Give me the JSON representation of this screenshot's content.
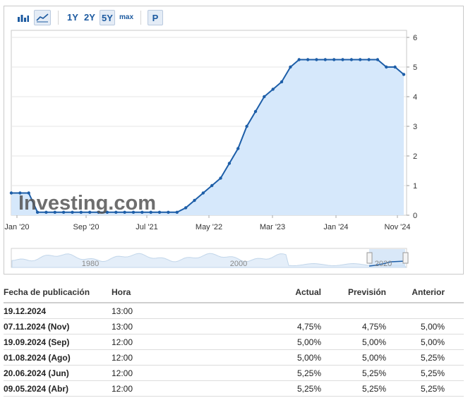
{
  "toolbar": {
    "ranges": [
      "1Y",
      "2Y",
      "5Y",
      "max"
    ],
    "selected_range": "5Y",
    "p_label": "P",
    "icons": [
      "bar-chart-icon",
      "area-chart-icon"
    ]
  },
  "chart_data": {
    "type": "area",
    "x_tick_labels": [
      "Jan '20",
      "Sep '20",
      "Jul '21",
      "May '22",
      "Mar '23",
      "Jan '24",
      "Nov '24"
    ],
    "y_ticks": [
      0,
      1,
      2,
      3,
      4,
      5,
      6
    ],
    "ylim": [
      0,
      6
    ],
    "y_axis_side": "right",
    "grid": true,
    "series": [
      {
        "values": [
          0.75,
          0.75,
          0.75,
          0.1,
          0.1,
          0.1,
          0.1,
          0.1,
          0.1,
          0.1,
          0.1,
          0.1,
          0.1,
          0.1,
          0.1,
          0.1,
          0.1,
          0.1,
          0.1,
          0.1,
          0.25,
          0.5,
          0.75,
          1.0,
          1.25,
          1.75,
          2.25,
          3.0,
          3.5,
          4.0,
          4.25,
          4.5,
          5.0,
          5.25,
          5.25,
          5.25,
          5.25,
          5.25,
          5.25,
          5.25,
          5.25,
          5.25,
          5.25,
          5.0,
          5.0,
          4.75
        ]
      }
    ],
    "navigator_labels": [
      "1980",
      "2000",
      "2020"
    ],
    "watermark": "Investing.com",
    "colors": {
      "line": "#1d5ea8",
      "fill": "#d6e8fb",
      "grid": "#e6e6e6"
    }
  },
  "table": {
    "headers": [
      "Fecha de publicación",
      "Hora",
      "Actual",
      "Previsión",
      "Anterior"
    ],
    "rows": [
      [
        "19.12.2024",
        "13:00",
        "",
        "",
        ""
      ],
      [
        "07.11.2024 (Nov)",
        "13:00",
        "4,75%",
        "4,75%",
        "5,00%"
      ],
      [
        "19.09.2024 (Sep)",
        "12:00",
        "5,00%",
        "5,00%",
        "5,00%"
      ],
      [
        "01.08.2024 (Ago)",
        "12:00",
        "5,00%",
        "5,00%",
        "5,25%"
      ],
      [
        "20.06.2024 (Jun)",
        "12:00",
        "5,25%",
        "5,25%",
        "5,25%"
      ],
      [
        "09.05.2024 (Abr)",
        "12:00",
        "5,25%",
        "5,25%",
        "5,25%"
      ]
    ]
  }
}
